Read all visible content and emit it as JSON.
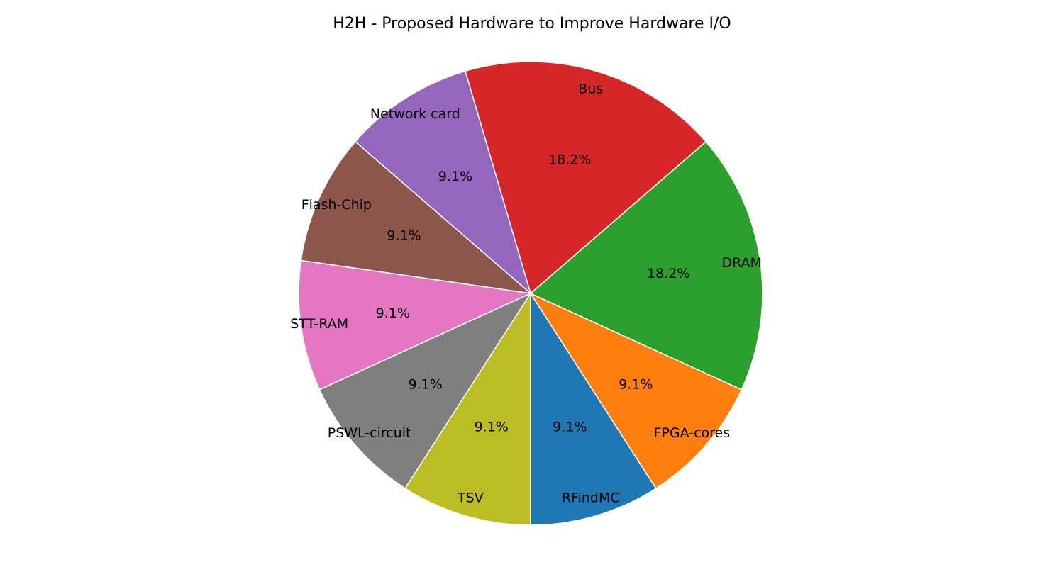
{
  "chart_data": {
    "type": "pie",
    "title": "H2H - Proposed Hardware to Improve Hardware I/O",
    "autopct_format": "%.1f%%",
    "slices": [
      {
        "label": "RFindMC",
        "value": 1,
        "pct": "9.1%",
        "color": "#1f77b4"
      },
      {
        "label": "FPGA-cores",
        "value": 1,
        "pct": "9.1%",
        "color": "#ff7f0e"
      },
      {
        "label": "DRAM",
        "value": 2,
        "pct": "18.2%",
        "color": "#2ca02c"
      },
      {
        "label": "Bus",
        "value": 2,
        "pct": "18.2%",
        "color": "#d62728"
      },
      {
        "label": "Network card",
        "value": 1,
        "pct": "9.1%",
        "color": "#9467bd"
      },
      {
        "label": "Flash-Chip",
        "value": 1,
        "pct": "9.1%",
        "color": "#8c564b"
      },
      {
        "label": "STT-RAM",
        "value": 1,
        "pct": "9.1%",
        "color": "#e377c2"
      },
      {
        "label": "PSWL-circuit",
        "value": 1,
        "pct": "9.1%",
        "color": "#7f7f7f"
      },
      {
        "label": "TSV",
        "value": 1,
        "pct": "9.1%",
        "color": "#bcbd22"
      }
    ],
    "start_angle_deg": 270,
    "direction": "counterclockwise",
    "legend": "none"
  }
}
